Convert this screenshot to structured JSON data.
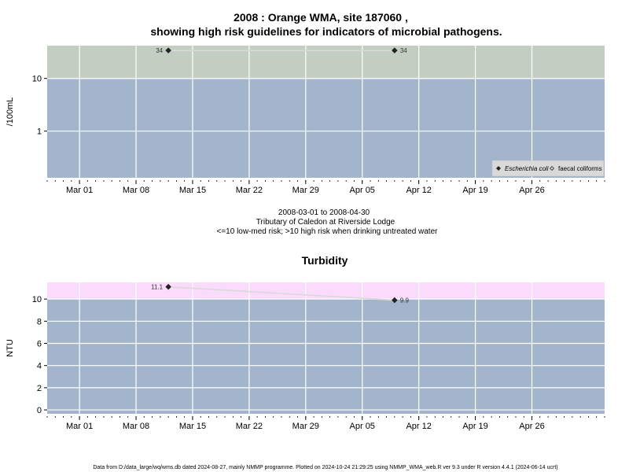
{
  "title_line1": "2008 : Orange WMA, site 187060 ,",
  "title_line2": "showing high risk guidelines for indicators of microbial pathogens.",
  "caption_line1": "2008-03-01 to 2008-04-30",
  "caption_line2": "Tributary of Caledon at Riverside Lodge",
  "caption_line3": "<=10 low-med risk; >10 high risk when drinking untreated water",
  "footnote": "Data from D:/data_large/wq/wms.db dated 2024-08-27, mainly NMMP programme. Plotted on 2024-10-24 21:29:25 using NMMP_WMA_web.R ver 9.3 under R version 4.4.1 (2024-06-14 ucrt)",
  "colors": {
    "panel_bg": "#a3b4cd",
    "high_risk_micro": "#c3cec3",
    "high_risk_turb": "#fbdbfb",
    "grid": "#ffffff",
    "line": "#d9d9d9",
    "point": "#222222",
    "legend_bg": "#d9d9d9"
  },
  "chart_data": [
    {
      "type": "scatter",
      "title": "",
      "xlabel": "",
      "ylabel": "/100mL",
      "y_scale": "log",
      "x_range": [
        "2008-02-26",
        "2008-05-05"
      ],
      "x_ticks": [
        "2008-03-01",
        "2008-03-08",
        "2008-03-15",
        "2008-03-22",
        "2008-03-29",
        "2008-04-05",
        "2008-04-12",
        "2008-04-19",
        "2008-04-26"
      ],
      "x_tick_labels": [
        "Mar 01",
        "Mar 08",
        "Mar 15",
        "Mar 22",
        "Mar 29",
        "Apr 05",
        "Apr 12",
        "Apr 19",
        "Apr 26"
      ],
      "y_ticks": [
        1,
        10
      ],
      "y_tick_labels": [
        "1",
        "10"
      ],
      "ylim": [
        0.13,
        42
      ],
      "threshold": 10,
      "grid": true,
      "legend_position": "bottom-right",
      "series": [
        {
          "name": "Escherichia coli",
          "marker": "filled-diamond",
          "x": [
            "2008-03-12",
            "2008-04-09"
          ],
          "y": [
            34,
            34
          ],
          "labels": [
            "34",
            "34"
          ]
        },
        {
          "name": "faecal coliforms",
          "marker": "open-diamond",
          "x": [],
          "y": [],
          "labels": []
        }
      ]
    },
    {
      "type": "scatter",
      "title": "Turbidity",
      "xlabel": "",
      "ylabel": "NTU",
      "x_range": [
        "2008-02-26",
        "2008-05-05"
      ],
      "x_ticks": [
        "2008-03-01",
        "2008-03-08",
        "2008-03-15",
        "2008-03-22",
        "2008-03-29",
        "2008-04-05",
        "2008-04-12",
        "2008-04-19",
        "2008-04-26"
      ],
      "x_tick_labels": [
        "Mar 01",
        "Mar 08",
        "Mar 15",
        "Mar 22",
        "Mar 29",
        "Apr 05",
        "Apr 12",
        "Apr 19",
        "Apr 26"
      ],
      "y_ticks": [
        0,
        2,
        4,
        6,
        8,
        10
      ],
      "y_tick_labels": [
        "0",
        "2",
        "4",
        "6",
        "8",
        "10"
      ],
      "ylim": [
        -0.35,
        11.5
      ],
      "threshold": 10,
      "grid": true,
      "series": [
        {
          "name": "",
          "marker": "filled-diamond",
          "x": [
            "2008-03-12",
            "2008-04-09"
          ],
          "y": [
            11.1,
            9.9
          ],
          "labels": [
            "11.1",
            "9.9"
          ]
        }
      ]
    }
  ]
}
